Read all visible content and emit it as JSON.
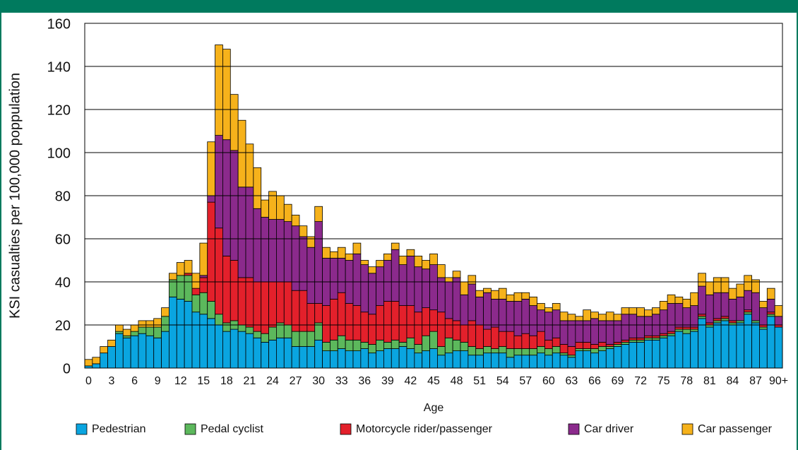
{
  "chart_data": {
    "type": "bar",
    "stacked": true,
    "x_label": "Age",
    "y_label": "KSI casualties per 100,000 poppulation",
    "categories": [
      "0",
      null,
      null,
      "3",
      null,
      null,
      "6",
      null,
      null,
      "9",
      null,
      null,
      "12",
      null,
      null,
      "15",
      null,
      null,
      "18",
      null,
      null,
      "21",
      null,
      null,
      "24",
      null,
      null,
      "27",
      null,
      null,
      "30",
      null,
      null,
      "33",
      null,
      null,
      "36",
      null,
      null,
      "39",
      null,
      null,
      "42",
      null,
      null,
      "45",
      null,
      null,
      "48",
      null,
      null,
      "51",
      null,
      null,
      "54",
      null,
      null,
      "57",
      null,
      null,
      "60",
      null,
      null,
      "63",
      null,
      null,
      "66",
      null,
      null,
      "69",
      null,
      null,
      "72",
      null,
      null,
      "75",
      null,
      null,
      "78",
      null,
      null,
      "81",
      null,
      null,
      "84",
      null,
      null,
      "87",
      null,
      null,
      "90+"
    ],
    "series": [
      {
        "name": "Pedestrian",
        "color": "#0aa5e0",
        "values": [
          1,
          2,
          7,
          10,
          16,
          14,
          15,
          16,
          15,
          14,
          17,
          33,
          32,
          31,
          26,
          25,
          23,
          20,
          17,
          18,
          17,
          16,
          14,
          12,
          13,
          14,
          14,
          10,
          10,
          10,
          13,
          8,
          8,
          9,
          8,
          8,
          9,
          7,
          8,
          9,
          9,
          10,
          9,
          7,
          8,
          9,
          6,
          7,
          8,
          8,
          6,
          6,
          7,
          7,
          7,
          5,
          6,
          6,
          6,
          7,
          6,
          7,
          6,
          5,
          8,
          8,
          7,
          8,
          9,
          10,
          11,
          12,
          12,
          13,
          13,
          14,
          15,
          17,
          16,
          17,
          23,
          19,
          21,
          22,
          20,
          21,
          25,
          21,
          18,
          24,
          19
        ]
      },
      {
        "name": "Pedal cyclist",
        "color": "#5cb85c",
        "values": [
          0,
          0,
          0,
          0,
          1,
          1,
          2,
          3,
          4,
          5,
          7,
          8,
          11,
          12,
          8,
          10,
          8,
          5,
          4,
          4,
          3,
          3,
          3,
          4,
          6,
          7,
          6,
          7,
          7,
          7,
          8,
          4,
          5,
          6,
          5,
          5,
          3,
          4,
          5,
          3,
          4,
          2,
          5,
          4,
          7,
          8,
          4,
          7,
          5,
          4,
          4,
          3,
          3,
          2,
          3,
          4,
          3,
          3,
          3,
          3,
          3,
          3,
          1,
          1,
          1,
          1,
          2,
          2,
          1,
          1,
          1,
          1,
          1,
          1,
          1,
          1,
          1,
          1,
          2,
          1,
          1,
          1,
          1,
          1,
          1,
          1,
          1,
          1,
          1,
          1,
          0
        ]
      },
      {
        "name": "Motorcycle rider/passenger",
        "color": "#e3202b",
        "values": [
          0,
          0,
          0,
          0,
          0,
          0,
          0,
          0,
          0,
          0,
          0,
          0,
          0,
          1,
          3,
          7,
          46,
          40,
          31,
          28,
          22,
          23,
          23,
          24,
          21,
          19,
          20,
          19,
          19,
          13,
          9,
          17,
          19,
          20,
          17,
          16,
          14,
          14,
          16,
          19,
          18,
          17,
          15,
          15,
          13,
          10,
          16,
          9,
          9,
          8,
          12,
          11,
          8,
          10,
          7,
          8,
          6,
          7,
          6,
          7,
          4,
          4,
          4,
          4,
          3,
          3,
          2,
          2,
          1,
          1,
          1,
          1,
          1,
          1,
          1,
          1,
          1,
          1,
          1,
          1,
          1,
          1,
          1,
          1,
          1,
          0,
          1,
          0,
          1,
          1,
          1
        ]
      },
      {
        "name": "Car driver",
        "color": "#8b2a8c",
        "values": [
          0,
          0,
          0,
          0,
          0,
          0,
          0,
          0,
          0,
          0,
          0,
          0,
          0,
          0,
          0,
          1,
          3,
          43,
          54,
          51,
          42,
          42,
          34,
          30,
          29,
          29,
          28,
          30,
          25,
          26,
          38,
          22,
          19,
          16,
          20,
          24,
          22,
          19,
          18,
          19,
          24,
          19,
          23,
          21,
          18,
          21,
          16,
          17,
          20,
          14,
          17,
          13,
          17,
          13,
          15,
          14,
          16,
          16,
          14,
          10,
          13,
          13,
          11,
          12,
          10,
          10,
          12,
          10,
          11,
          10,
          12,
          11,
          10,
          9,
          10,
          11,
          13,
          11,
          9,
          10,
          13,
          13,
          12,
          11,
          10,
          11,
          9,
          13,
          8,
          6,
          4
        ]
      },
      {
        "name": "Car passenger",
        "color": "#f6b21b",
        "values": [
          3,
          3,
          3,
          3,
          3,
          3,
          3,
          3,
          3,
          4,
          4,
          3,
          6,
          6,
          7,
          15,
          25,
          42,
          42,
          26,
          31,
          20,
          19,
          8,
          13,
          11,
          8,
          5,
          5,
          5,
          7,
          5,
          3,
          5,
          3,
          5,
          2,
          3,
          3,
          3,
          3,
          4,
          3,
          5,
          4,
          5,
          6,
          2,
          3,
          6,
          4,
          3,
          2,
          4,
          5,
          3,
          4,
          3,
          4,
          3,
          2,
          3,
          4,
          3,
          2,
          5,
          3,
          3,
          4,
          3,
          3,
          3,
          4,
          3,
          3,
          4,
          4,
          3,
          4,
          6,
          6,
          6,
          7,
          7,
          5,
          6,
          7,
          6,
          3,
          5,
          5
        ]
      }
    ],
    "ylim": [
      0,
      160
    ],
    "yticks": [
      0,
      20,
      40,
      60,
      80,
      100,
      120,
      140,
      160
    ],
    "grid": true,
    "legend": "bottom"
  }
}
